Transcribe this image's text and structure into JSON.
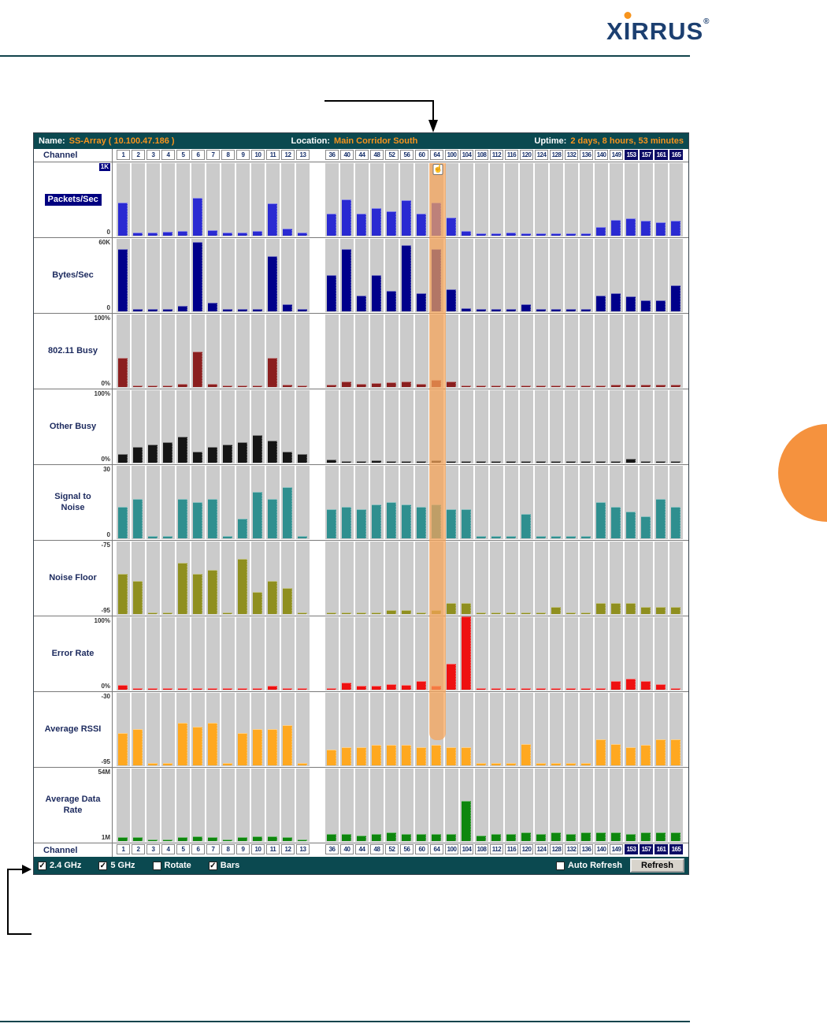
{
  "logo": {
    "x": "X",
    "i": "I",
    "rrus": "RRUS",
    "registered": "®"
  },
  "colors": {
    "brand_orange": "#f7941d",
    "titlebar_teal": "#0b4950",
    "selected_column_highlight": "#f6a458",
    "page_decoration_orange": "#f5923e"
  },
  "header": {
    "name_label": "Name:",
    "name_value": "SS-Array  ( 10.100.47.186 )",
    "location_label": "Location:",
    "location_value": "Main Corridor South",
    "uptime_label": "Uptime:",
    "uptime_value": "2 days, 8 hours, 53 minutes"
  },
  "footer": {
    "checkboxes": [
      {
        "label": "2.4 GHz",
        "checked": true
      },
      {
        "label": "5 GHz",
        "checked": true
      },
      {
        "label": "Rotate",
        "checked": false
      },
      {
        "label": "Bars",
        "checked": true
      }
    ],
    "auto_refresh": {
      "label": "Auto Refresh",
      "checked": false
    },
    "refresh_button": "Refresh"
  },
  "chart_data": {
    "type": "bar",
    "channel_label": "Channel",
    "channels_24ghz": [
      "1",
      "2",
      "3",
      "4",
      "5",
      "6",
      "7",
      "8",
      "9",
      "10",
      "11",
      "12",
      "13"
    ],
    "channels_5ghz": [
      "36",
      "40",
      "44",
      "48",
      "52",
      "56",
      "60",
      "64",
      "100",
      "104",
      "108",
      "112",
      "116",
      "120",
      "124",
      "128",
      "132",
      "136",
      "140",
      "149",
      "153",
      "157",
      "161",
      "165"
    ],
    "highlighted_channels": [
      "153",
      "157",
      "161",
      "165"
    ],
    "selected_channel": "64",
    "metrics": [
      {
        "name": "Packets/Sec",
        "selected": true,
        "max_label": "1K",
        "min_label": "0",
        "min": 0,
        "max": 1000,
        "color": "#2a2ad2",
        "values_24ghz": [
          450,
          40,
          40,
          50,
          60,
          520,
          80,
          40,
          40,
          60,
          440,
          100,
          40
        ],
        "values_5ghz": [
          300,
          500,
          300,
          380,
          330,
          480,
          300,
          450,
          250,
          70,
          30,
          30,
          40,
          30,
          30,
          30,
          30,
          30,
          120,
          220,
          240,
          200,
          180,
          200
        ]
      },
      {
        "name": "Bytes/Sec",
        "max_label": "60K",
        "min_label": "0",
        "min": 0,
        "max": 60000,
        "color": "#00008b",
        "values_24ghz": [
          51000,
          1800,
          1800,
          1800,
          4800,
          57000,
          7200,
          1800,
          1800,
          1800,
          45000,
          6000,
          1800
        ],
        "values_5ghz": [
          30000,
          51000,
          13000,
          30000,
          17000,
          54000,
          15000,
          51000,
          18000,
          2400,
          1800,
          1800,
          1800,
          6000,
          1800,
          1800,
          1800,
          1800,
          13000,
          15000,
          12000,
          9000,
          9000,
          21000
        ]
      },
      {
        "name": "802.11 Busy",
        "max_label": "100%",
        "min_label": "0%",
        "min": 0,
        "max": 100,
        "color": "#8b1f1f",
        "values_24ghz": [
          40,
          2,
          2,
          2,
          4,
          48,
          4,
          2,
          2,
          2,
          40,
          3,
          2
        ],
        "values_5ghz": [
          3,
          8,
          4,
          5,
          6,
          8,
          4,
          10,
          8,
          2,
          2,
          2,
          2,
          2,
          2,
          2,
          2,
          2,
          2,
          3,
          3,
          3,
          3,
          3
        ]
      },
      {
        "name": "Other Busy",
        "max_label": "100%",
        "min_label": "0%",
        "min": 0,
        "max": 100,
        "color": "#151515",
        "values_24ghz": [
          12,
          22,
          25,
          28,
          35,
          15,
          22,
          25,
          28,
          38,
          30,
          15,
          12
        ],
        "values_5ghz": [
          4,
          2,
          2,
          3,
          2,
          2,
          2,
          3,
          2,
          2,
          2,
          2,
          2,
          2,
          2,
          2,
          2,
          2,
          2,
          2,
          5,
          2,
          2,
          2
        ]
      },
      {
        "name": "Signal to Noise",
        "max_label": "30",
        "min_label": "0",
        "min": 0,
        "max": 30,
        "color": "#2f8f8f",
        "values_24ghz": [
          13,
          16,
          1,
          1,
          16,
          15,
          16,
          1,
          8,
          19,
          16,
          21,
          1
        ],
        "values_5ghz": [
          12,
          13,
          12,
          14,
          15,
          14,
          13,
          14,
          12,
          12,
          1,
          1,
          1,
          10,
          1,
          1,
          1,
          1,
          15,
          13,
          11,
          9,
          16,
          13
        ]
      },
      {
        "name": "Noise Floor",
        "max_label": "-75",
        "min_label": "-95",
        "min": -95,
        "max": -75,
        "color": "#8f8f1f",
        "values_24ghz": [
          -84,
          -86,
          -95,
          -95,
          -81,
          -84,
          -83,
          -95,
          -80,
          -89,
          -86,
          -88,
          -95
        ],
        "values_5ghz": [
          -95,
          -95,
          -95,
          -95,
          -94,
          -94,
          -95,
          -94,
          -92,
          -92,
          -95,
          -95,
          -95,
          -95,
          -95,
          -93,
          -95,
          -95,
          -92,
          -92,
          -92,
          -93,
          -93,
          -93
        ]
      },
      {
        "name": "Error Rate",
        "max_label": "100%",
        "min_label": "0%",
        "min": 0,
        "max": 100,
        "color": "#ee1111",
        "values_24ghz": [
          6,
          1,
          1,
          1,
          1,
          2,
          1,
          1,
          1,
          1,
          5,
          1,
          1
        ],
        "values_5ghz": [
          2,
          10,
          5,
          5,
          8,
          6,
          12,
          5,
          35,
          100,
          1,
          1,
          1,
          1,
          1,
          1,
          1,
          1,
          2,
          12,
          15,
          12,
          8,
          2
        ]
      },
      {
        "name": "Average RSSI",
        "max_label": "-30",
        "min_label": "-95",
        "min": -95,
        "max": -30,
        "color": "#ffa820",
        "values_24ghz": [
          -66,
          -63,
          -93,
          -93,
          -57,
          -61,
          -57,
          -93,
          -66,
          -63,
          -63,
          -59,
          -93
        ],
        "values_5ghz": [
          -81,
          -79,
          -79,
          -77,
          -77,
          -77,
          -79,
          -77,
          -79,
          -79,
          -93,
          -93,
          -93,
          -76,
          -93,
          -93,
          -93,
          -93,
          -72,
          -76,
          -79,
          -77,
          -72,
          -72
        ]
      },
      {
        "name": "Average Data Rate",
        "max_label": "54M",
        "min_label": "1M",
        "min": 1,
        "max": 54,
        "color": "#0e870e",
        "values_24ghz": [
          4,
          4,
          1.5,
          1.5,
          4,
          4.5,
          4,
          1.5,
          4,
          4.5,
          4.5,
          4,
          1.5
        ],
        "values_5ghz": [
          6,
          6,
          5,
          6,
          7,
          6,
          6,
          6,
          6,
          30,
          5,
          6,
          6,
          7,
          6,
          7,
          6,
          7,
          7,
          7,
          6,
          7,
          7,
          7
        ]
      }
    ]
  }
}
